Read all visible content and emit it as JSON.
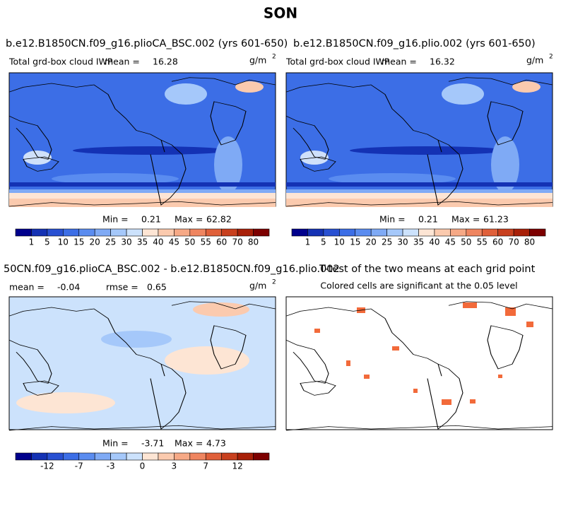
{
  "title": "SON",
  "panels": [
    {
      "title": "b.e12.B1850CN.f09_g16.plioCA_BSC.002 (yrs 601-650)",
      "variable": "Total grd-box cloud IWP",
      "mean_label": "mean =",
      "mean": 16.28,
      "units": "g/m",
      "units_exp": "2",
      "min_label": "Min =",
      "min": 0.21,
      "max_label": "Max =",
      "max": 62.82
    },
    {
      "title": "b.e12.B1850CN.f09_g16.plio.002 (yrs 601-650)",
      "variable": "Total grd-box cloud IWP",
      "mean_label": "mean =",
      "mean": 16.32,
      "units": "g/m",
      "units_exp": "2",
      "min_label": "Min =",
      "min": 0.21,
      "max_label": "Max =",
      "max": 61.23
    },
    {
      "title": "50CN.f09_g16.plioCA_BSC.002 - b.e12.B1850CN.f09_g16.plio.002",
      "mean_label": "mean =",
      "mean": -0.04,
      "rmse_label": "rmse =",
      "rmse": 0.65,
      "units": "g/m",
      "units_exp": "2",
      "min_label": "Min =",
      "min": -3.71,
      "max_label": "Max =",
      "max": 4.73
    },
    {
      "title": "T-test of the two means at each grid point",
      "note": "Colored cells are significant at the 0.05 level"
    }
  ],
  "colorbars": [
    {
      "labels": [
        1,
        5,
        10,
        15,
        20,
        25,
        30,
        35,
        40,
        45,
        50,
        55,
        60,
        70,
        80
      ],
      "colors": [
        "#00008c",
        "#1432b4",
        "#2850d2",
        "#3c6ee6",
        "#5a8cf0",
        "#7faaf5",
        "#a5c8fa",
        "#cce2fc",
        "#fde5d4",
        "#fbcaae",
        "#f6a986",
        "#ef8560",
        "#e0603a",
        "#c8401e",
        "#a82008",
        "#7d0000"
      ]
    },
    {
      "labels": [
        1,
        5,
        10,
        15,
        20,
        25,
        30,
        35,
        40,
        45,
        50,
        55,
        60,
        70,
        80
      ],
      "colors": [
        "#00008c",
        "#1432b4",
        "#2850d2",
        "#3c6ee6",
        "#5a8cf0",
        "#7faaf5",
        "#a5c8fa",
        "#cce2fc",
        "#fde5d4",
        "#fbcaae",
        "#f6a986",
        "#ef8560",
        "#e0603a",
        "#c8401e",
        "#a82008",
        "#7d0000"
      ]
    },
    {
      "labels": [
        -12,
        -7,
        -3,
        0,
        3,
        7,
        12
      ],
      "colors": [
        "#00008c",
        "#1432b4",
        "#2850d2",
        "#3c6ee6",
        "#5a8cf0",
        "#7faaf5",
        "#a5c8fa",
        "#cce2fc",
        "#fde5d4",
        "#fbcaae",
        "#f6a986",
        "#ef8560",
        "#e0603a",
        "#c8401e",
        "#a82008",
        "#7d0000"
      ]
    }
  ]
}
